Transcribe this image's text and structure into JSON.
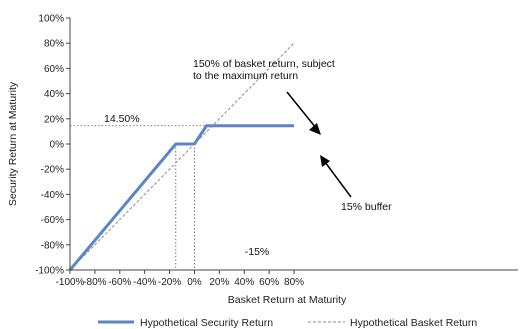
{
  "chart_data": {
    "type": "line",
    "xlabel": "Basket Return at Maturity",
    "ylabel": "Security Return at Maturity",
    "xlim": [
      -100,
      80
    ],
    "ylim": [
      -100,
      100
    ],
    "x_tick_labels": [
      "-100%",
      "-80%",
      "-60%",
      "-40%",
      "-20%",
      "0%",
      "20%",
      "40%",
      "60%",
      "80%"
    ],
    "y_tick_labels": [
      "100%",
      "80%",
      "60%",
      "40%",
      "20%",
      "0%",
      "-20%",
      "-40%",
      "-60%",
      "-80%",
      "-100%"
    ],
    "series": [
      {
        "name": "Hypothetical Security Return",
        "color": "#5b85c5",
        "style": "solid",
        "x": [
          -100,
          -15,
          0,
          9.67,
          80
        ],
        "y": [
          -100,
          0,
          0,
          14.5,
          14.5
        ]
      },
      {
        "name": "Hypothetical Basket Return",
        "color": "#8c8c8c",
        "style": "dashed",
        "x": [
          -100,
          80
        ],
        "y": [
          -100,
          80
        ]
      }
    ],
    "reference_lines": [
      {
        "orientation": "horizontal",
        "y": 14.5,
        "label": "14.50%"
      },
      {
        "orientation": "vertical",
        "x": -15,
        "label": "-15%"
      },
      {
        "orientation": "vertical",
        "x": 0
      }
    ],
    "annotations": [
      {
        "text_lines": [
          "150% of basket return, subject",
          "to the maximum  return"
        ],
        "points_to": [
          2,
          14.5
        ]
      },
      {
        "text": "15% buffer",
        "points_to": [
          0,
          -4
        ]
      }
    ],
    "legend_position": "bottom",
    "grid": false
  }
}
